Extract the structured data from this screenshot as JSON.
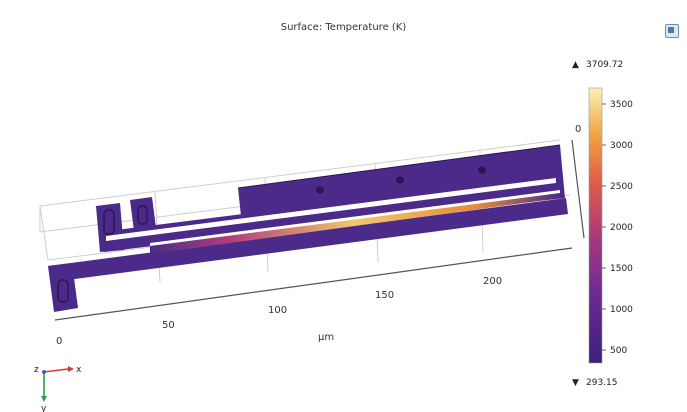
{
  "plot": {
    "title": "Surface: Temperature (K)",
    "unit_label": "μm",
    "x_ticks": [
      "0",
      "50",
      "100",
      "150",
      "200"
    ],
    "y_tick_right": "0",
    "colors": {
      "structure": "#4b2a8a",
      "grid": "#cfcfcf",
      "hot_low": "#b1407a",
      "hot_mid": "#e38a3d",
      "hot_high": "#f6e6a3"
    }
  },
  "colorbar": {
    "max_label": "3709.72",
    "min_label": "293.15",
    "max_marker": "▲",
    "min_marker": "▼",
    "ticks": [
      "3500",
      "3000",
      "2500",
      "2000",
      "1500",
      "1000",
      "500"
    ]
  },
  "triad": {
    "x_label": "x",
    "y_label": "y",
    "z_label": "z"
  }
}
